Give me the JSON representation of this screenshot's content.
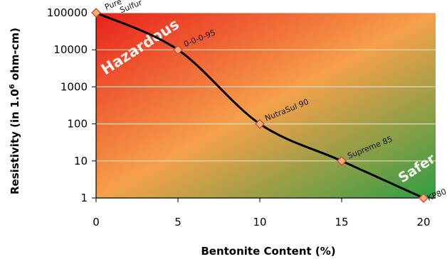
{
  "chart_data": {
    "type": "line",
    "title": "",
    "xlabel": "Bentonite Content (%)",
    "ylabel": "Resistivity (in 1.0",
    "ylabel_sup": "6",
    "ylabel_unit": " ohm-cm)",
    "x": [
      0,
      5,
      10,
      15,
      20
    ],
    "xlim": [
      0,
      20
    ],
    "x_ticks": [
      "0",
      "5",
      "10",
      "15",
      "20"
    ],
    "y_scale": "log",
    "ylim": [
      1,
      100000
    ],
    "y_ticks": [
      {
        "value": 100000,
        "label": "100000"
      },
      {
        "value": 10000,
        "label": "10000"
      },
      {
        "value": 1000,
        "label": "1000"
      },
      {
        "value": 100,
        "label": "100"
      },
      {
        "value": 10,
        "label": "10"
      },
      {
        "value": 1,
        "label": "1"
      }
    ],
    "grid": true,
    "series": [
      {
        "values": [
          100000,
          10000,
          100,
          10,
          1
        ],
        "line_color": "#000000",
        "marker_color": "#f5b070",
        "marker_edge": "#c0504d"
      }
    ],
    "point_labels": [
      {
        "text": "Pure",
        "text2": "Sulfur"
      },
      {
        "text": "0-0-0-95"
      },
      {
        "text": "NutraSul 90"
      },
      {
        "text": "Supreme 85"
      },
      {
        "text": "KP80"
      }
    ],
    "annotations": [
      {
        "text": "Hazardous",
        "color": "#ffffff"
      },
      {
        "text": "Safer",
        "color": "#ffffff"
      }
    ],
    "background_gradient": {
      "from": "#e8201c",
      "mid": "#f6a04a",
      "to": "#2f9e44"
    }
  }
}
